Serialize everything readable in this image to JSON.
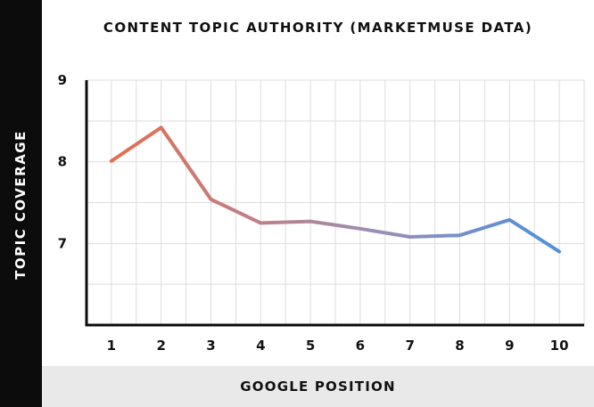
{
  "chart_data": {
    "type": "line",
    "title": "CONTENT TOPIC AUTHORITY (MARKETMUSE DATA)",
    "xlabel": "GOOGLE POSITION",
    "ylabel": "TOPIC COVERAGE",
    "x": [
      1,
      2,
      3,
      4,
      5,
      6,
      7,
      8,
      9,
      10
    ],
    "x_tick_labels": [
      "1",
      "2",
      "3",
      "4",
      "5",
      "6",
      "7",
      "8",
      "9",
      "10"
    ],
    "series": [
      {
        "values": [
          8.01,
          8.42,
          7.54,
          7.25,
          7.27,
          7.18,
          7.08,
          7.1,
          7.29,
          6.9
        ]
      }
    ],
    "y_tick_labels": [
      "9",
      "8",
      "7"
    ],
    "y_ticks": [
      9,
      8,
      7
    ],
    "ylim": [
      6,
      9
    ],
    "xlim": [
      0.5,
      10.5
    ],
    "grid": true,
    "line_gradient": [
      "#e56e50",
      "#9b8fb5",
      "#4a90e0"
    ]
  }
}
